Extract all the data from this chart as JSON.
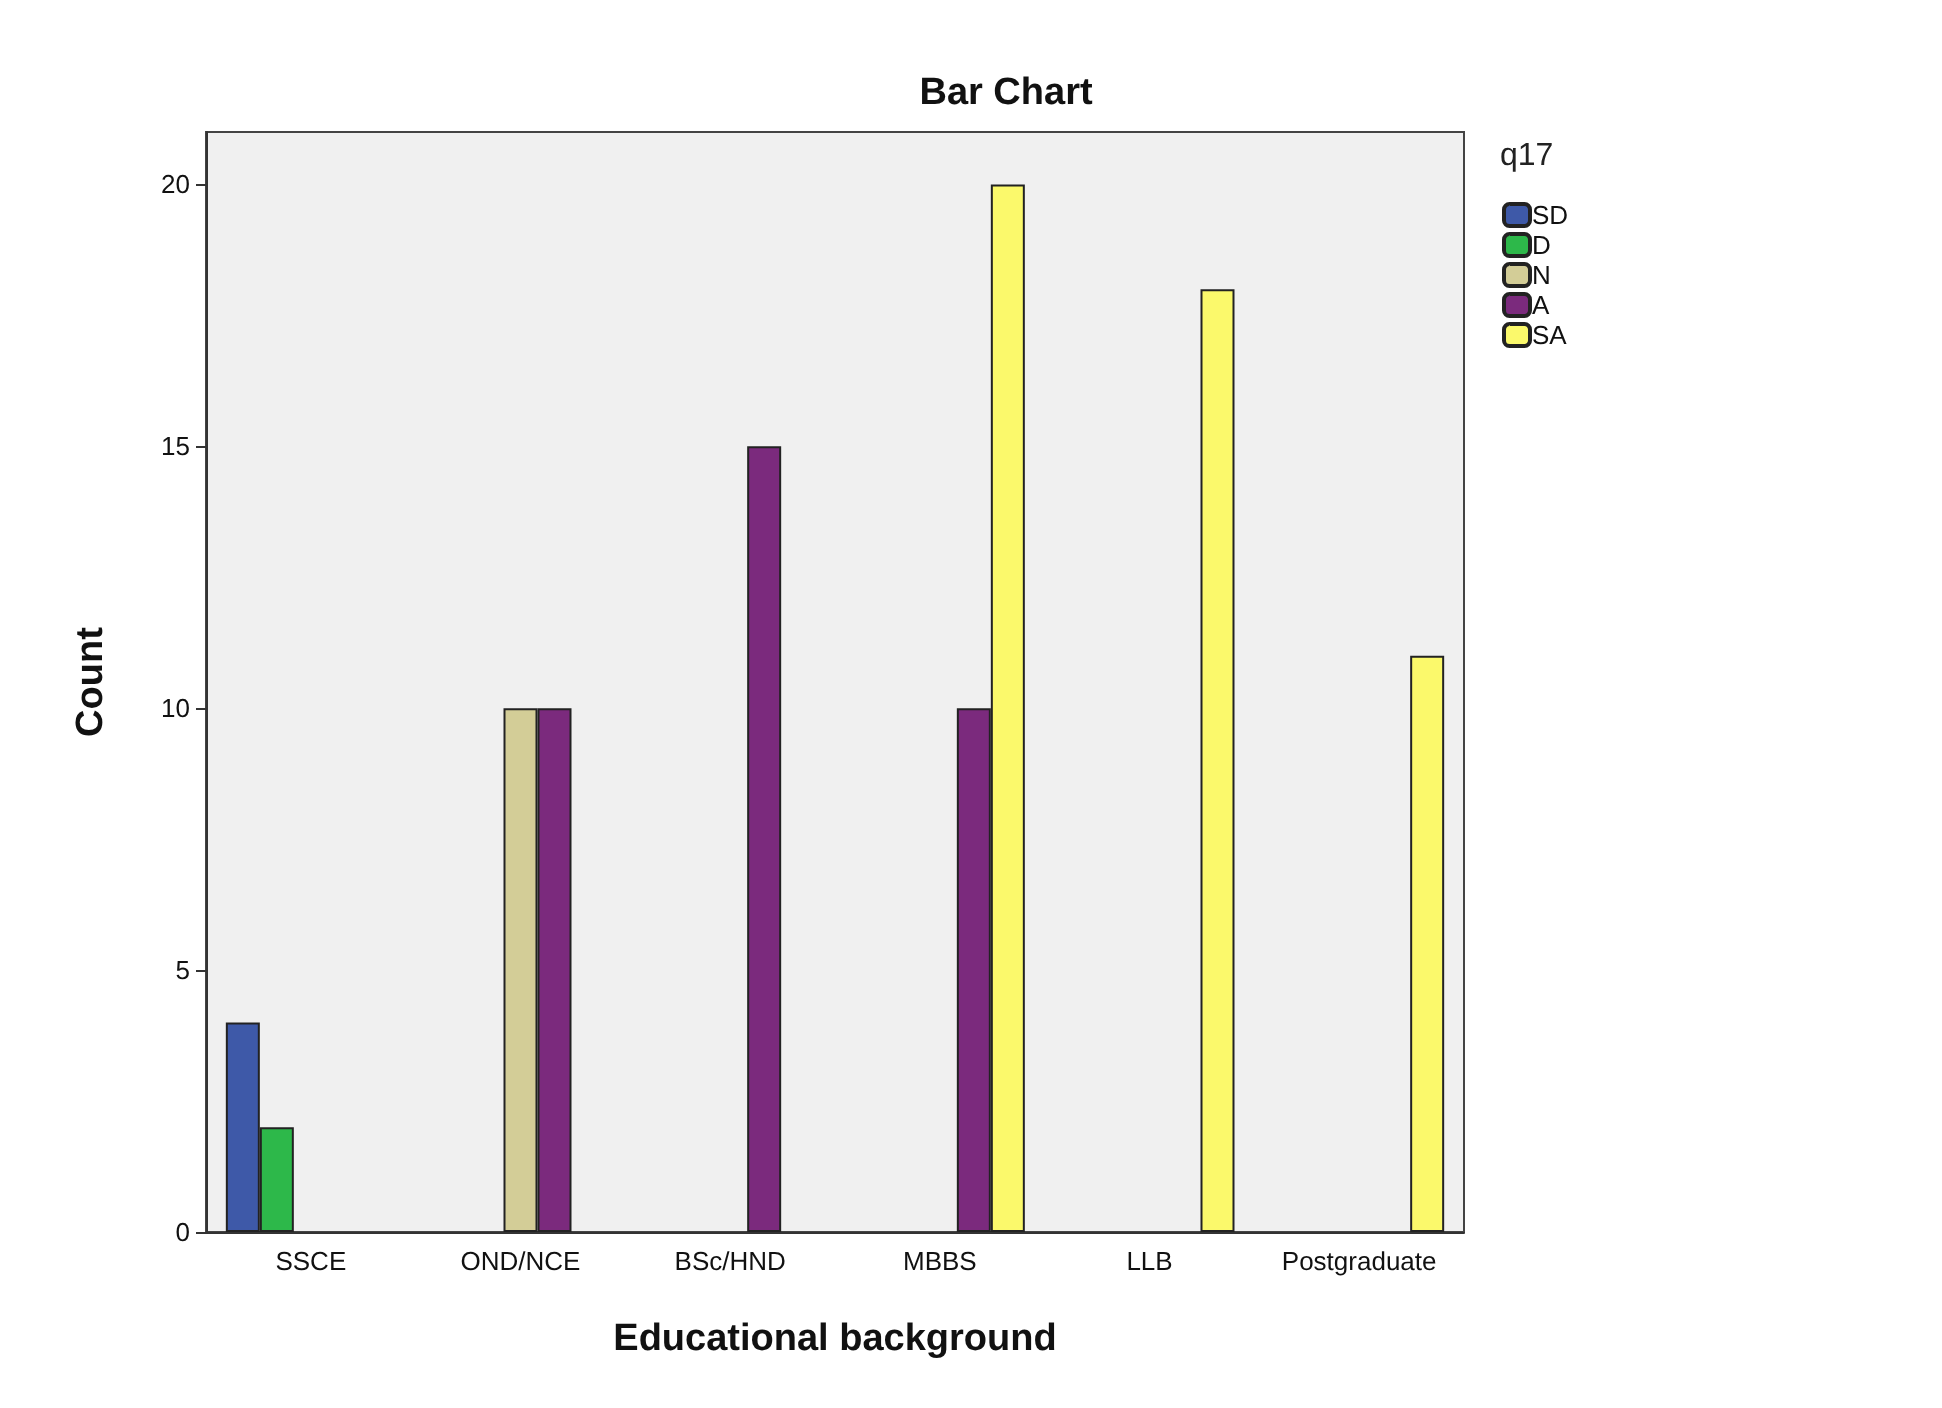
{
  "chart_data": {
    "type": "bar",
    "title": "Bar Chart",
    "xlabel": "Educational background",
    "ylabel": "Count",
    "legend_title": "q17",
    "legend": "top right",
    "grid": false,
    "categories": [
      "SSCE",
      "OND/NCE",
      "BSc/HND",
      "MBBS",
      "LLB",
      "Postgraduate"
    ],
    "ylim": [
      0,
      21
    ],
    "yticks": [
      0,
      5,
      10,
      15,
      20
    ],
    "series": [
      {
        "name": "SD",
        "color": "#3e59a8",
        "values": [
          4,
          null,
          null,
          null,
          null,
          null
        ]
      },
      {
        "name": "D",
        "color": "#2db84a",
        "values": [
          2,
          null,
          null,
          null,
          null,
          null
        ]
      },
      {
        "name": "N",
        "color": "#d3cd97",
        "values": [
          null,
          10,
          null,
          null,
          null,
          null
        ]
      },
      {
        "name": "A",
        "color": "#7b2a7d",
        "values": [
          null,
          10,
          15,
          10,
          null,
          null
        ]
      },
      {
        "name": "SA",
        "color": "#fbf96b",
        "values": [
          null,
          null,
          null,
          20,
          18,
          11
        ]
      }
    ]
  }
}
